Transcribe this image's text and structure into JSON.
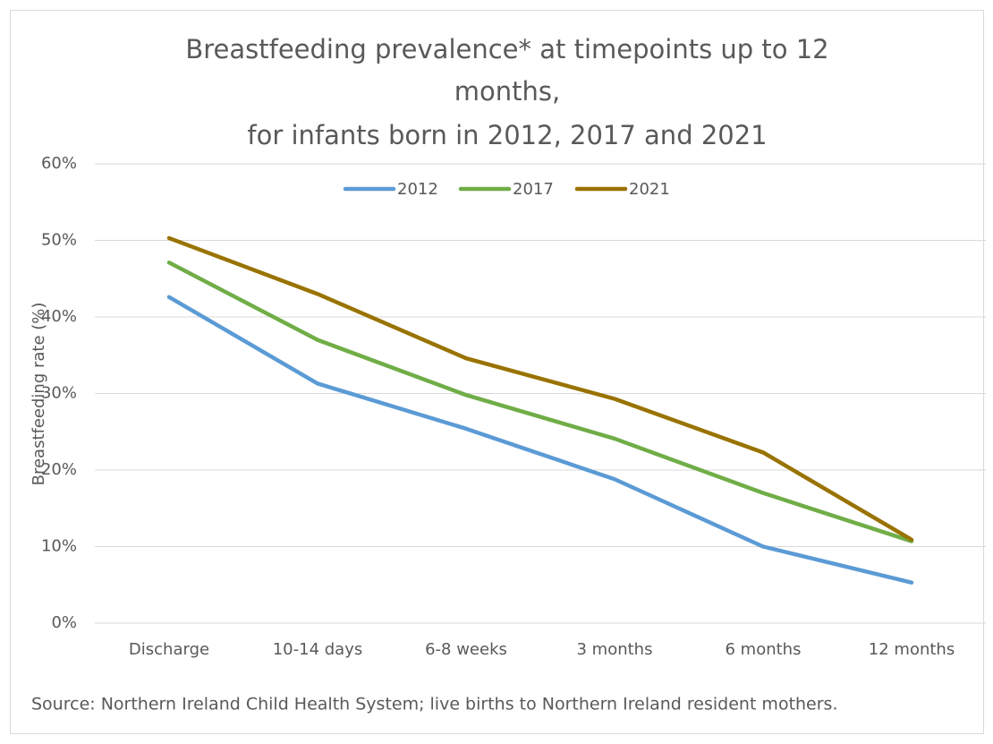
{
  "chart_data": {
    "type": "line",
    "title": [
      "Breastfeeding prevalence* at timepoints up to 12",
      "months,",
      "for infants born in 2012, 2017 and 2021"
    ],
    "y_label": "Breastfeeding rate (%)",
    "note": "Source: Northern Ireland Child Health System; live births to Northern Ireland resident mothers.",
    "categories": [
      "Discharge",
      "10-14 days",
      "6-8 weeks",
      "3 months",
      "6 months",
      "12 months"
    ],
    "series": [
      {
        "name": "2012",
        "color": "#5b9bd5",
        "values": [
          42.6,
          31.3,
          25.4,
          18.8,
          10.0,
          5.3
        ]
      },
      {
        "name": "2017",
        "color": "#70ad47",
        "values": [
          47.1,
          37.0,
          29.8,
          24.1,
          17.0,
          10.7
        ]
      },
      {
        "name": "2021",
        "color": "#997300",
        "values": [
          50.3,
          43.0,
          34.6,
          29.3,
          22.3,
          10.9
        ]
      }
    ],
    "ylim": [
      0,
      60
    ],
    "yticks": [
      {
        "value": 0,
        "label": "0%"
      },
      {
        "value": 10,
        "label": "10%"
      },
      {
        "value": 20,
        "label": "20%"
      },
      {
        "value": 30,
        "label": "30%"
      },
      {
        "value": 40,
        "label": "40%"
      },
      {
        "value": 50,
        "label": "50%"
      },
      {
        "value": 60,
        "label": "60%"
      }
    ],
    "grid": true,
    "legend": "top"
  }
}
